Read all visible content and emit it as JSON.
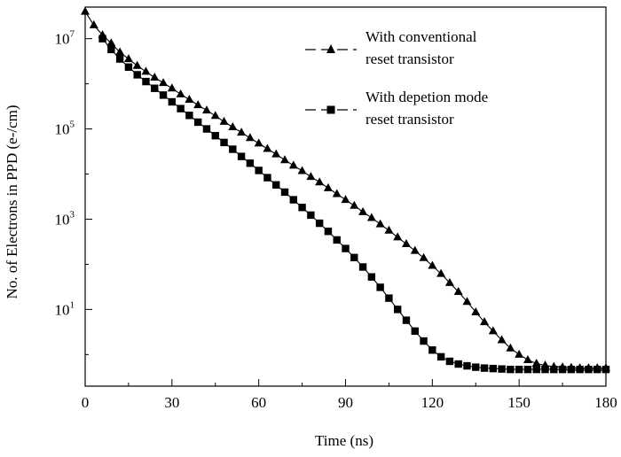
{
  "chart_data": {
    "type": "line",
    "xlabel": "Time (ns)",
    "ylabel": "No. of Electrons in PPD (e-/cm)",
    "xlim": [
      0,
      180
    ],
    "ylim_log10": [
      -0.7,
      7.7
    ],
    "y_scale": "log",
    "x_ticks": [
      {
        "value": 0,
        "label": "0"
      },
      {
        "value": 30,
        "label": "30"
      },
      {
        "value": 60,
        "label": "60"
      },
      {
        "value": 90,
        "label": "90"
      },
      {
        "value": 120,
        "label": "120"
      },
      {
        "value": 150,
        "label": "150"
      },
      {
        "value": 180,
        "label": "180"
      }
    ],
    "y_ticks": [
      {
        "exp": 1,
        "base": "10",
        "sup": "1"
      },
      {
        "exp": 3,
        "base": "10",
        "sup": "3"
      },
      {
        "exp": 5,
        "base": "10",
        "sup": "5"
      },
      {
        "exp": 7,
        "base": "10",
        "sup": "7"
      }
    ],
    "legend_position": "top-right",
    "series": [
      {
        "name_line1": "With conventional",
        "name_line2": "reset transistor",
        "marker": "triangle",
        "log10_points": [
          [
            0,
            7.6
          ],
          [
            3,
            7.3
          ],
          [
            6,
            7.08
          ],
          [
            9,
            6.9
          ],
          [
            12,
            6.7
          ],
          [
            15,
            6.55
          ],
          [
            18,
            6.4
          ],
          [
            21,
            6.27
          ],
          [
            24,
            6.14
          ],
          [
            27,
            6.02
          ],
          [
            30,
            5.9
          ],
          [
            33,
            5.77
          ],
          [
            36,
            5.65
          ],
          [
            39,
            5.53
          ],
          [
            42,
            5.41
          ],
          [
            45,
            5.29
          ],
          [
            48,
            5.16
          ],
          [
            51,
            5.04
          ],
          [
            54,
            4.92
          ],
          [
            57,
            4.8
          ],
          [
            60,
            4.68
          ],
          [
            63,
            4.56
          ],
          [
            66,
            4.44
          ],
          [
            69,
            4.31
          ],
          [
            72,
            4.19
          ],
          [
            75,
            4.07
          ],
          [
            78,
            3.94
          ],
          [
            81,
            3.82
          ],
          [
            84,
            3.69
          ],
          [
            87,
            3.56
          ],
          [
            90,
            3.43
          ],
          [
            93,
            3.3
          ],
          [
            96,
            3.16
          ],
          [
            99,
            3.03
          ],
          [
            102,
            2.89
          ],
          [
            105,
            2.75
          ],
          [
            108,
            2.6
          ],
          [
            111,
            2.45
          ],
          [
            114,
            2.3
          ],
          [
            117,
            2.14
          ],
          [
            120,
            1.97
          ],
          [
            123,
            1.79
          ],
          [
            126,
            1.59
          ],
          [
            129,
            1.39
          ],
          [
            132,
            1.17
          ],
          [
            135,
            0.94
          ],
          [
            138,
            0.72
          ],
          [
            141,
            0.52
          ],
          [
            144,
            0.32
          ],
          [
            147,
            0.14
          ],
          [
            150,
            0.0
          ],
          [
            153,
            -0.12
          ],
          [
            156,
            -0.2
          ],
          [
            159,
            -0.24
          ],
          [
            162,
            -0.27
          ],
          [
            165,
            -0.28
          ],
          [
            168,
            -0.29
          ],
          [
            171,
            -0.3
          ],
          [
            174,
            -0.3
          ],
          [
            177,
            -0.3
          ],
          [
            180,
            -0.3
          ]
        ]
      },
      {
        "name_line1": "With depetion mode",
        "name_line2": "reset transistor",
        "marker": "square",
        "log10_points": [
          [
            6,
            7.0
          ],
          [
            9,
            6.76
          ],
          [
            12,
            6.55
          ],
          [
            15,
            6.37
          ],
          [
            18,
            6.2
          ],
          [
            21,
            6.05
          ],
          [
            24,
            5.9
          ],
          [
            27,
            5.75
          ],
          [
            30,
            5.6
          ],
          [
            33,
            5.45
          ],
          [
            36,
            5.3
          ],
          [
            39,
            5.15
          ],
          [
            42,
            5.0
          ],
          [
            45,
            4.85
          ],
          [
            48,
            4.7
          ],
          [
            51,
            4.55
          ],
          [
            54,
            4.39
          ],
          [
            57,
            4.24
          ],
          [
            60,
            4.08
          ],
          [
            63,
            3.92
          ],
          [
            66,
            3.76
          ],
          [
            69,
            3.6
          ],
          [
            72,
            3.43
          ],
          [
            75,
            3.26
          ],
          [
            78,
            3.09
          ],
          [
            81,
            2.91
          ],
          [
            84,
            2.73
          ],
          [
            87,
            2.54
          ],
          [
            90,
            2.35
          ],
          [
            93,
            2.15
          ],
          [
            96,
            1.94
          ],
          [
            99,
            1.72
          ],
          [
            102,
            1.49
          ],
          [
            105,
            1.25
          ],
          [
            108,
            1.0
          ],
          [
            111,
            0.76
          ],
          [
            114,
            0.52
          ],
          [
            117,
            0.3
          ],
          [
            120,
            0.1
          ],
          [
            123,
            -0.05
          ],
          [
            126,
            -0.15
          ],
          [
            129,
            -0.21
          ],
          [
            132,
            -0.25
          ],
          [
            135,
            -0.28
          ],
          [
            138,
            -0.3
          ],
          [
            141,
            -0.31
          ],
          [
            144,
            -0.32
          ],
          [
            147,
            -0.33
          ],
          [
            150,
            -0.33
          ],
          [
            153,
            -0.33
          ],
          [
            156,
            -0.33
          ],
          [
            159,
            -0.33
          ],
          [
            162,
            -0.33
          ],
          [
            165,
            -0.33
          ],
          [
            168,
            -0.33
          ],
          [
            171,
            -0.33
          ],
          [
            174,
            -0.33
          ],
          [
            177,
            -0.33
          ],
          [
            180,
            -0.33
          ]
        ]
      }
    ]
  }
}
